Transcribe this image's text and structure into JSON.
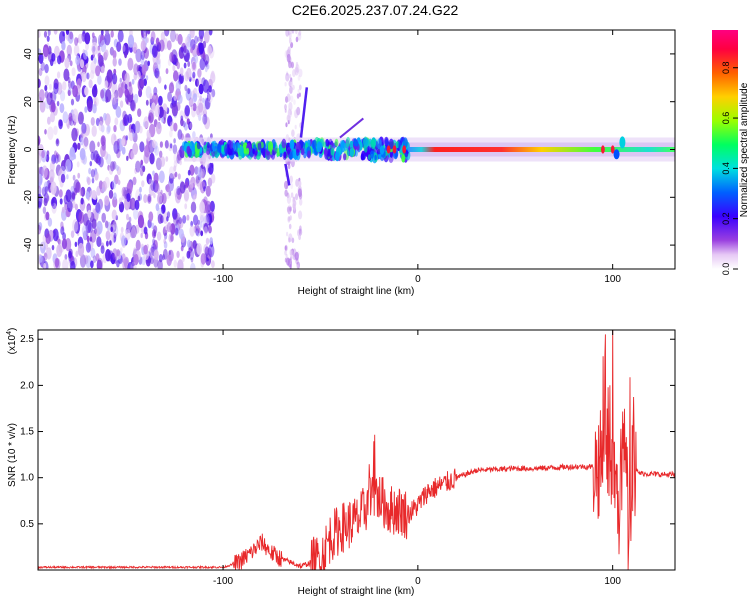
{
  "title": "C2E6.2025.237.07.24.G22",
  "chart_data": [
    {
      "type": "heatmap",
      "name": "spectrogram",
      "xlabel": "Height of straight line (km)",
      "ylabel": "Frequency (Hz)",
      "xlim": [
        -195,
        132
      ],
      "ylim": [
        -50,
        50
      ],
      "xticks": [
        -100,
        0,
        100
      ],
      "xtick_labels": [
        "-100",
        "0",
        "100"
      ],
      "yticks": [
        -40,
        -20,
        0,
        20,
        40
      ],
      "ytick_labels": [
        "-40",
        "-20",
        "0",
        "20",
        "40"
      ],
      "colorbar": {
        "label": "Normalized spectral amplitude",
        "range": [
          0.0,
          0.95
        ],
        "ticks": [
          0.0,
          0.2,
          0.4,
          0.6,
          0.8
        ],
        "tick_labels": [
          "0.0",
          "0.2",
          "0.4",
          "0.6",
          "0.8"
        ]
      },
      "features": [
        {
          "region": "broadband noise",
          "x_range": [
            -195,
            -105
          ],
          "freq_range": [
            -50,
            50
          ],
          "amplitude": 0.2
        },
        {
          "region": "sparse noise column",
          "x_range": [
            -68,
            -60
          ],
          "freq_range": [
            -50,
            50
          ],
          "amplitude": 0.1
        },
        {
          "region": "noisy carrier band",
          "x_range": [
            -120,
            -5
          ],
          "freq_center": 0,
          "amplitude": 0.5
        },
        {
          "region": "clean carrier line",
          "x_range": [
            -5,
            132
          ],
          "freq_center": 0,
          "amplitude": 0.9
        }
      ]
    },
    {
      "type": "line",
      "name": "snr",
      "xlabel": "Height of straight line (km)",
      "ylabel": "SNR (10 * v/v)",
      "scale_label": "(x10",
      "scale_exponent": "4",
      "scale_suffix": ")",
      "xlim": [
        -195,
        132
      ],
      "ylim": [
        0,
        2.6
      ],
      "xticks": [
        -100,
        0,
        100
      ],
      "xtick_labels": [
        "-100",
        "0",
        "100"
      ],
      "yticks": [
        0.5,
        1.0,
        1.5,
        2.0,
        2.5
      ],
      "ytick_labels": [
        "0.5",
        "1.0",
        "1.5",
        "2.0",
        "2.5"
      ],
      "series": [
        {
          "name": "SNR",
          "color": "#e8282a",
          "x": [
            -195,
            -150,
            -100,
            -92,
            -85,
            -80,
            -75,
            -70,
            -60,
            -50,
            -45,
            -40,
            -35,
            -30,
            -25,
            -20,
            -15,
            -10,
            -5,
            0,
            5,
            10,
            20,
            30,
            40,
            50,
            60,
            70,
            80,
            90,
            95,
            100,
            103,
            106,
            108,
            110,
            113,
            120,
            132
          ],
          "y": [
            0.03,
            0.03,
            0.03,
            0.08,
            0.2,
            0.3,
            0.18,
            0.12,
            0.04,
            0.12,
            0.35,
            0.45,
            0.5,
            0.55,
            0.75,
            0.8,
            0.65,
            0.65,
            0.6,
            0.7,
            0.85,
            0.9,
            1.0,
            1.08,
            1.09,
            1.1,
            1.1,
            1.11,
            1.12,
            1.12,
            1.15,
            1.25,
            0.6,
            1.5,
            0.3,
            1.2,
            1.05,
            1.04,
            1.03
          ]
        }
      ]
    }
  ]
}
